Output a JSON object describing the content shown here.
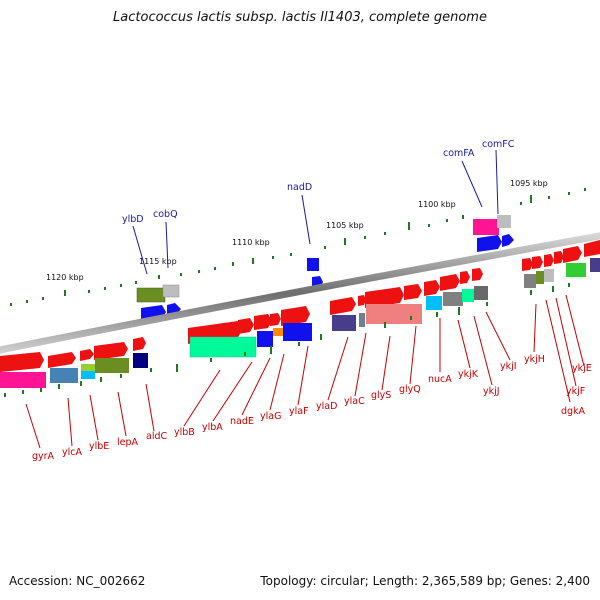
{
  "title": "Lactococcus lactis subsp. lactis Il1403, complete genome",
  "footer": {
    "accession": "Accession: NC_002662",
    "topology": "Topology: circular; Length: 2,365,589 bp; Genes: 2,400"
  },
  "scale_ticks": [
    {
      "label": "1095 kbp"
    },
    {
      "label": "1100 kbp"
    },
    {
      "label": "1105 kbp"
    },
    {
      "label": "1110 kbp"
    },
    {
      "label": "1115 kbp"
    },
    {
      "label": "1120 kbp"
    }
  ],
  "genes_above": [
    {
      "name": "comFC"
    },
    {
      "name": "comFA"
    },
    {
      "name": "nadD"
    },
    {
      "name": "cobQ"
    },
    {
      "name": "ylbD"
    }
  ],
  "genes_below": [
    {
      "name": "gyrA"
    },
    {
      "name": "ylcA"
    },
    {
      "name": "ylbE"
    },
    {
      "name": "lepA"
    },
    {
      "name": "aldC"
    },
    {
      "name": "ylbB"
    },
    {
      "name": "ylbA"
    },
    {
      "name": "nadE"
    },
    {
      "name": "ylaG"
    },
    {
      "name": "ylaF"
    },
    {
      "name": "ylaD"
    },
    {
      "name": "ylaC"
    },
    {
      "name": "glyS"
    },
    {
      "name": "glyQ"
    },
    {
      "name": "nucA"
    },
    {
      "name": "ykjK"
    },
    {
      "name": "ykjJ"
    },
    {
      "name": "ykjI"
    },
    {
      "name": "ykjH"
    },
    {
      "name": "ykjE"
    },
    {
      "name": "ykjF"
    },
    {
      "name": "dgkA"
    }
  ],
  "colors": {
    "forward_strand": "#ee1111",
    "reverse_strand": "#1111ee",
    "backbone": "#8a8a8a",
    "label_blue": "#1a1aa0",
    "label_red": "#c80000",
    "dots": "#1f7a1f"
  }
}
